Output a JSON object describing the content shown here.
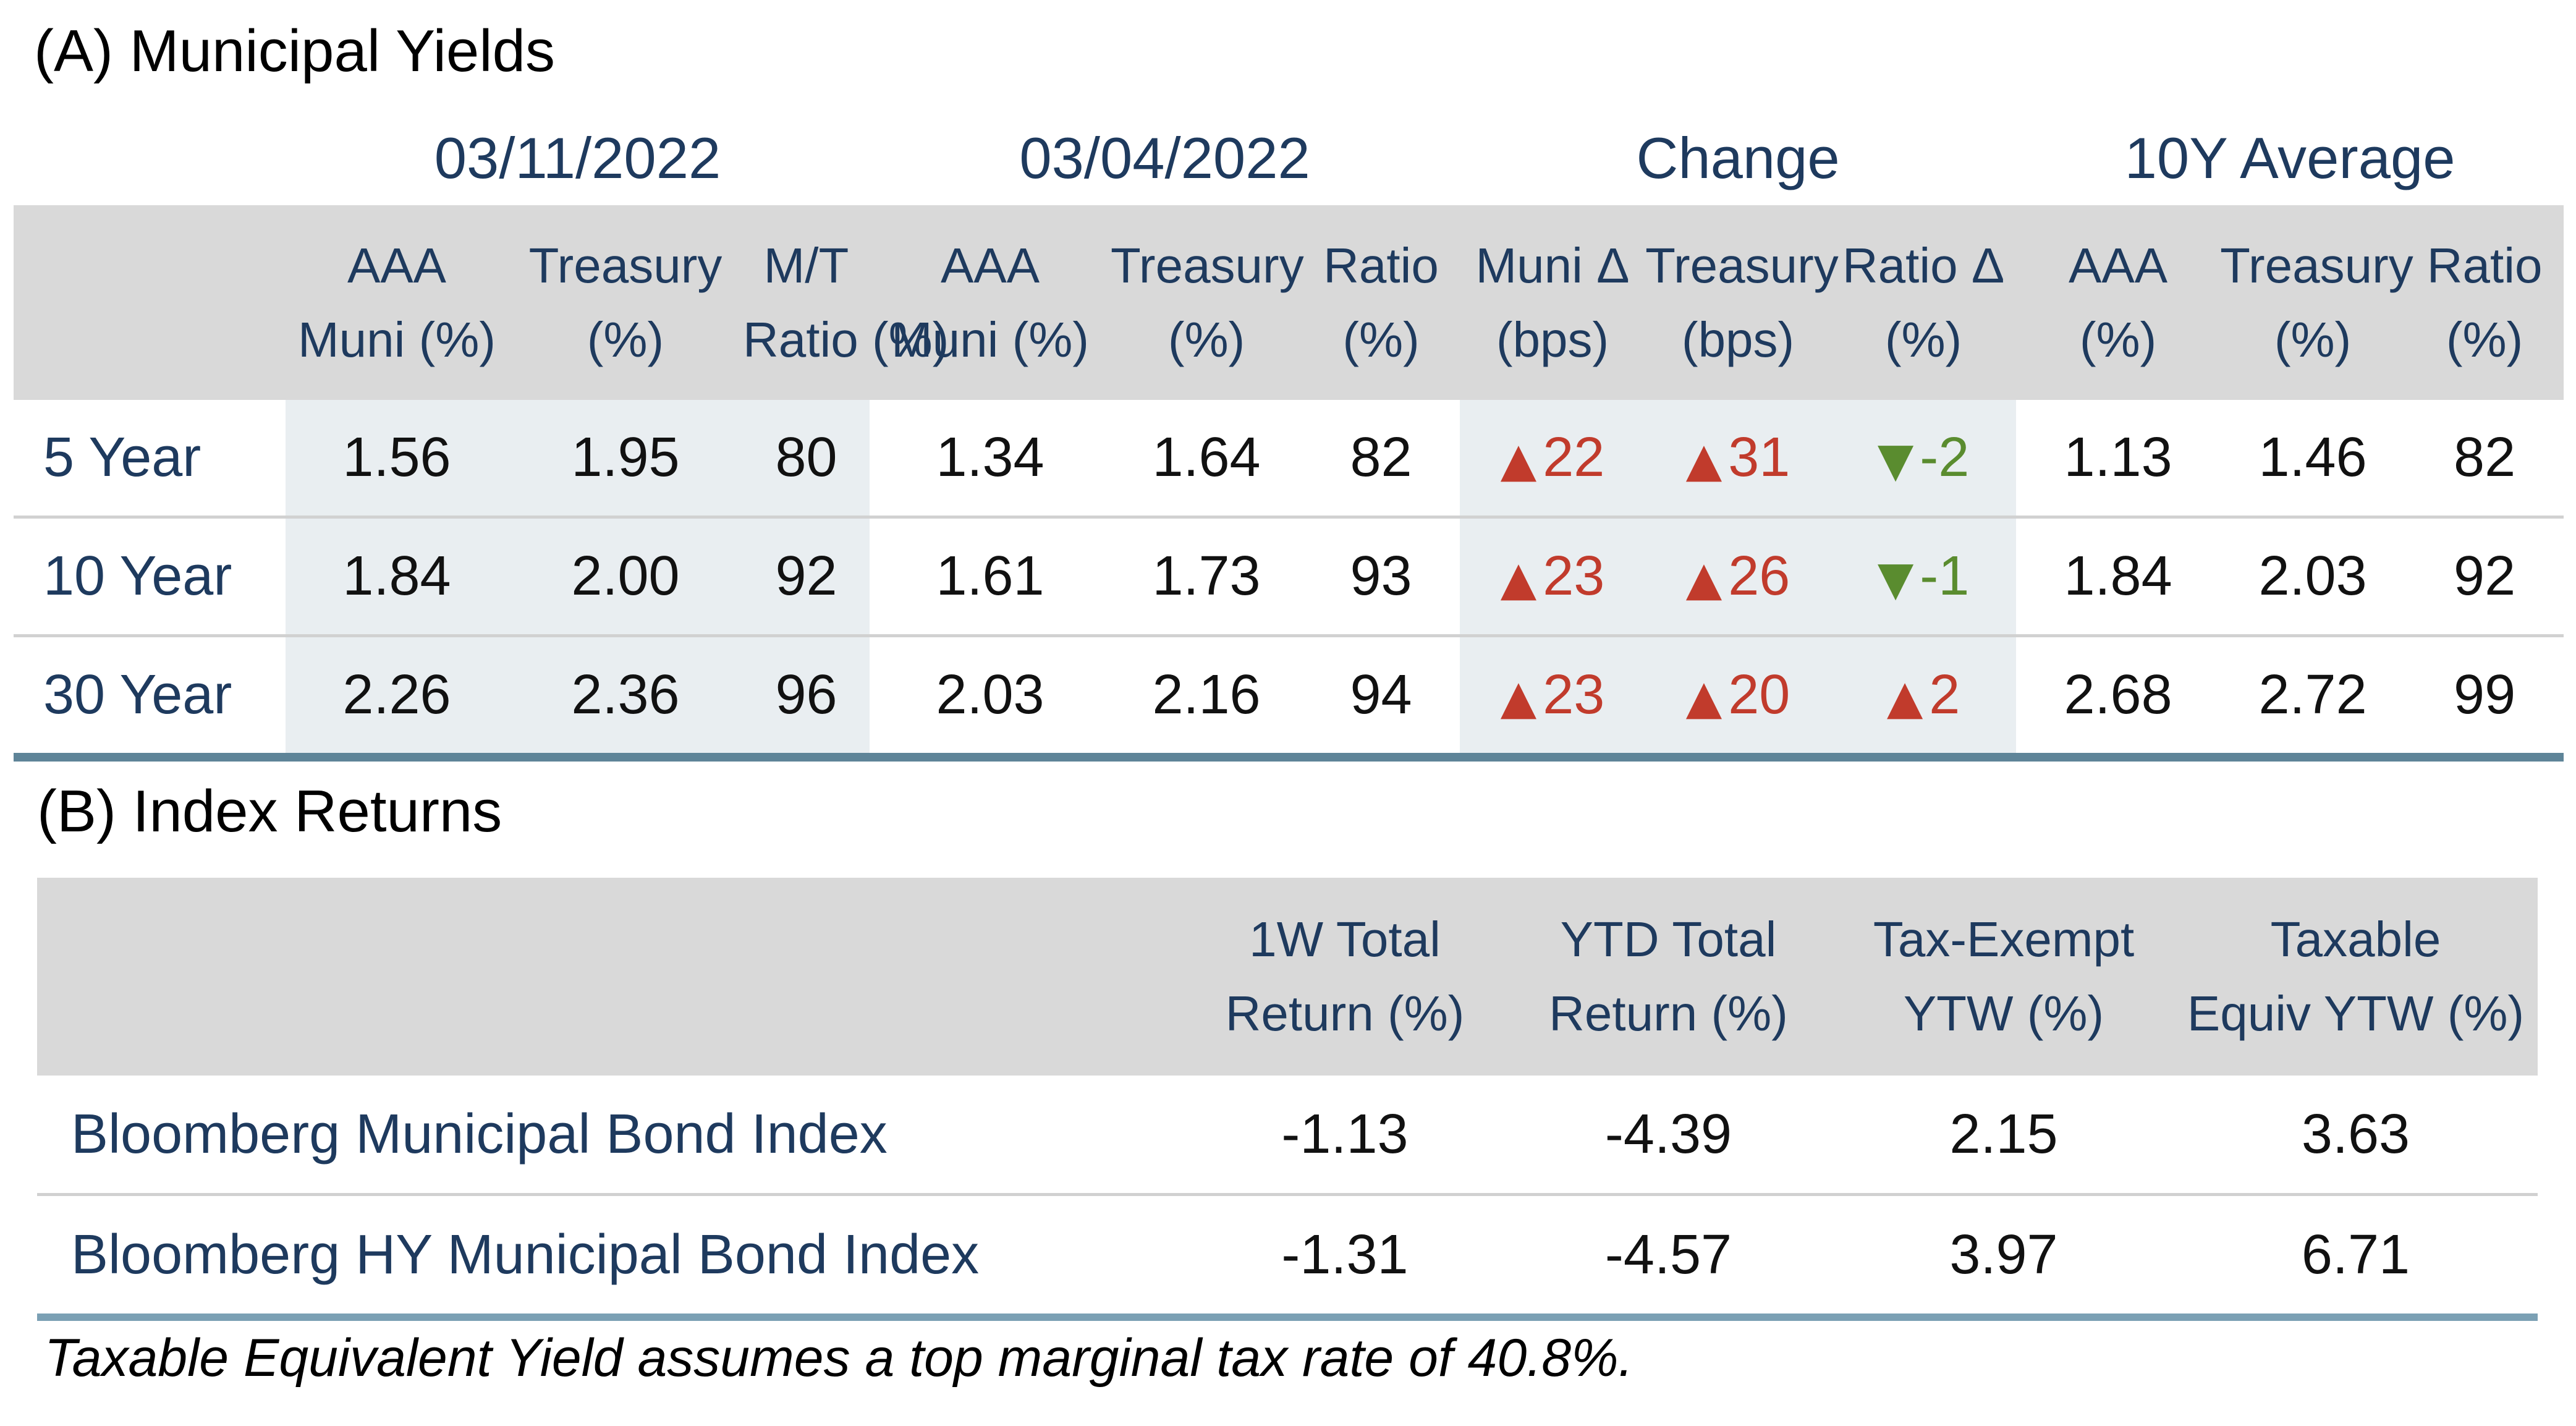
{
  "section_a": {
    "title": "(A) Municipal Yields",
    "group_headers": [
      "03/11/2022",
      "03/04/2022",
      "Change",
      "10Y Average"
    ],
    "column_headers": [
      {
        "line1": "AAA",
        "line2": "Muni (%)"
      },
      {
        "line1": "Treasury",
        "line2": "(%)"
      },
      {
        "line1": "M/T",
        "line2": "Ratio (%)"
      },
      {
        "line1": "AAA",
        "line2": "Muni (%)"
      },
      {
        "line1": "Treasury",
        "line2": "(%)"
      },
      {
        "line1": "Ratio",
        "line2": "(%)"
      },
      {
        "line1": "Muni Δ",
        "line2": "(bps)"
      },
      {
        "line1": "Treasury",
        "line2": "(bps)"
      },
      {
        "line1": "Ratio Δ",
        "line2": "(%)"
      },
      {
        "line1": "AAA",
        "line2": "(%)"
      },
      {
        "line1": "Treasury",
        "line2": "(%)"
      },
      {
        "line1": "Ratio",
        "line2": "(%)"
      }
    ],
    "rows": [
      {
        "label": "5 Year",
        "cells": [
          {
            "t": "1.56"
          },
          {
            "t": "1.95"
          },
          {
            "t": "80"
          },
          {
            "t": "1.34"
          },
          {
            "t": "1.64"
          },
          {
            "t": "82"
          },
          {
            "t": "22",
            "delta": "up"
          },
          {
            "t": "31",
            "delta": "up"
          },
          {
            "t": "-2",
            "delta": "down"
          },
          {
            "t": "1.13"
          },
          {
            "t": "1.46"
          },
          {
            "t": "82"
          }
        ]
      },
      {
        "label": "10 Year",
        "cells": [
          {
            "t": "1.84"
          },
          {
            "t": "2.00"
          },
          {
            "t": "92"
          },
          {
            "t": "1.61"
          },
          {
            "t": "1.73"
          },
          {
            "t": "93"
          },
          {
            "t": "23",
            "delta": "up"
          },
          {
            "t": "26",
            "delta": "up"
          },
          {
            "t": "-1",
            "delta": "down"
          },
          {
            "t": "1.84"
          },
          {
            "t": "2.03"
          },
          {
            "t": "92"
          }
        ]
      },
      {
        "label": "30 Year",
        "cells": [
          {
            "t": "2.26"
          },
          {
            "t": "2.36"
          },
          {
            "t": "96"
          },
          {
            "t": "2.03"
          },
          {
            "t": "2.16"
          },
          {
            "t": "94"
          },
          {
            "t": "23",
            "delta": "up"
          },
          {
            "t": "20",
            "delta": "up"
          },
          {
            "t": "2",
            "delta": "up"
          },
          {
            "t": "2.68"
          },
          {
            "t": "2.72"
          },
          {
            "t": "99"
          }
        ]
      }
    ]
  },
  "section_b": {
    "title": "(B) Index Returns",
    "column_headers": [
      {
        "line1": "1W Total",
        "line2": "Return (%)"
      },
      {
        "line1": "YTD Total",
        "line2": "Return (%)"
      },
      {
        "line1": "Tax-Exempt",
        "line2": "YTW (%)"
      },
      {
        "line1": "Taxable",
        "line2": "Equiv YTW (%)"
      }
    ],
    "rows": [
      {
        "label": "Bloomberg Municipal Bond Index",
        "values": [
          "-1.13",
          "-4.39",
          "2.15",
          "3.63"
        ]
      },
      {
        "label": "Bloomberg HY Municipal Bond Index",
        "values": [
          "-1.31",
          "-4.57",
          "3.97",
          "6.71"
        ]
      }
    ]
  },
  "footnote": "Taxable Equivalent Yield assumes a top marginal tax rate of 40.8%.",
  "icons": {
    "up_triangle": "▲",
    "down_triangle": "▼"
  },
  "colors": {
    "navy_text": "#1e3a5e",
    "body_text": "#111111",
    "header_band": "#d9d9d9",
    "tint_band": "#e9eef1",
    "up_red": "#c13b2c",
    "down_green": "#5a8c2f",
    "row_separator": "#d1d1d1",
    "table_a_bottom_border": "#5e8498",
    "table_b_bottom_border": "#7ba0b4"
  }
}
